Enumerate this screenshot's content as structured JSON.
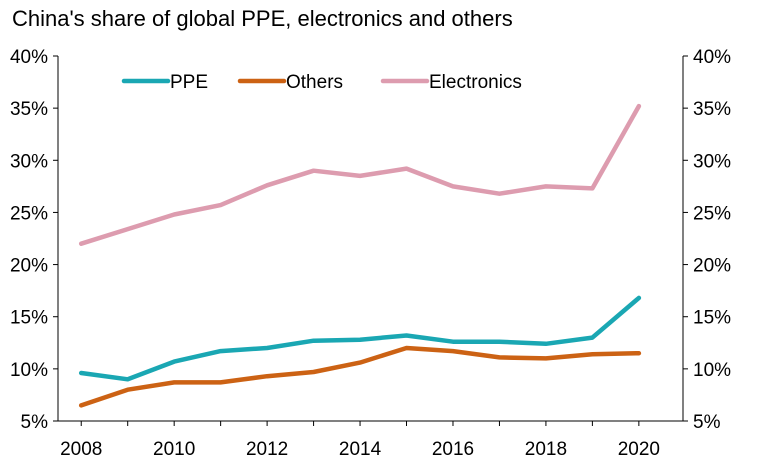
{
  "chart_data": {
    "type": "line",
    "title": "China's share of global PPE, electronics and others",
    "x": [
      2008,
      2009,
      2010,
      2011,
      2012,
      2013,
      2014,
      2015,
      2016,
      2017,
      2018,
      2019,
      2020
    ],
    "x_ticks": [
      "2008",
      "2010",
      "2012",
      "2014",
      "2016",
      "2018",
      "2020"
    ],
    "x_tick_values": [
      2008,
      2010,
      2012,
      2014,
      2016,
      2018,
      2020
    ],
    "y_ticks": [
      "5%",
      "10%",
      "15%",
      "20%",
      "25%",
      "30%",
      "35%",
      "40%"
    ],
    "y_tick_values": [
      5,
      10,
      15,
      20,
      25,
      30,
      35,
      40
    ],
    "ylim": [
      5,
      40
    ],
    "xlabel": "",
    "ylabel": "",
    "legend_position": "top-left",
    "grid": false,
    "secondary_y_axis": true,
    "series": [
      {
        "name": "PPE",
        "color": "#1aa7b3",
        "values": [
          9.6,
          9.0,
          10.7,
          11.7,
          12.0,
          12.7,
          12.8,
          13.2,
          12.6,
          12.6,
          12.4,
          13.0,
          16.8
        ]
      },
      {
        "name": "Others",
        "color": "#cc6214",
        "values": [
          6.5,
          8.0,
          8.7,
          8.7,
          9.3,
          9.7,
          10.6,
          12.0,
          11.7,
          11.1,
          11.0,
          11.4,
          11.5
        ]
      },
      {
        "name": "Electronics",
        "color": "#dd9caf",
        "values": [
          22.0,
          23.4,
          24.8,
          25.7,
          27.6,
          29.0,
          28.5,
          29.2,
          27.5,
          26.8,
          27.5,
          27.3,
          35.2
        ]
      }
    ]
  }
}
